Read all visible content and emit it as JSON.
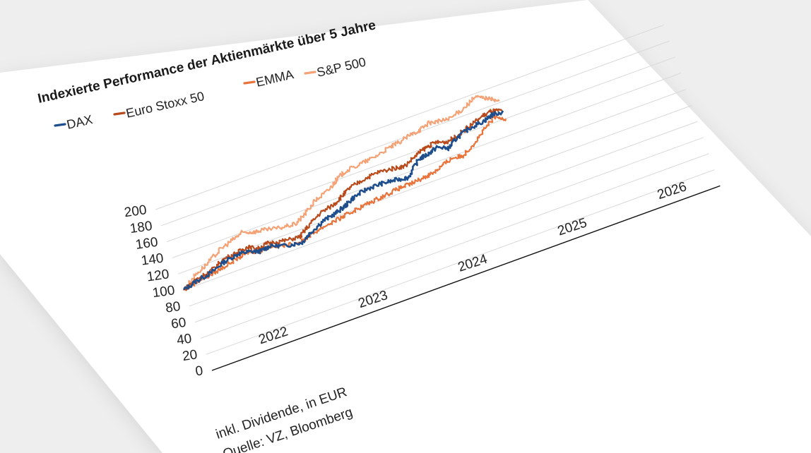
{
  "chart_data": {
    "type": "line",
    "title": "Indexierte Performance der Aktienmärkte über 5 Jahre",
    "footnote": "inkl. Dividende, in EUR",
    "source": "Quelle: VZ, Bloomberg",
    "xlabel": "",
    "ylabel": "",
    "ylim": [
      0,
      200
    ],
    "yticks": [
      "0",
      "20",
      "40",
      "60",
      "80",
      "100",
      "120",
      "140",
      "160",
      "180",
      "200"
    ],
    "xlim": [
      2021.3,
      2026.4
    ],
    "xticks": [
      {
        "label": "2022",
        "value": 2022
      },
      {
        "label": "2023",
        "value": 2023
      },
      {
        "label": "2024",
        "value": 2024
      },
      {
        "label": "2025",
        "value": 2025
      },
      {
        "label": "2026",
        "value": 2026
      }
    ],
    "grid": true,
    "legend_position": "top-left",
    "series": [
      {
        "name": "DAX",
        "color": "#1f4e8c",
        "x": [
          2021.3,
          2021.45,
          2021.6,
          2021.75,
          2021.9,
          2022.0,
          2022.1,
          2022.2,
          2022.35,
          2022.5,
          2022.6,
          2022.75,
          2022.9,
          2023.0,
          2023.1,
          2023.25,
          2023.4,
          2023.55,
          2023.65,
          2023.8,
          2023.9,
          2024.0,
          2024.1,
          2024.2,
          2024.35,
          2024.5,
          2024.6,
          2024.7
        ],
        "values": [
          100,
          105,
          108,
          115,
          118,
          116,
          112,
          114,
          108,
          105,
          112,
          120,
          124,
          128,
          134,
          138,
          138,
          136,
          134,
          150,
          152,
          156,
          150,
          158,
          164,
          166,
          170,
          168
        ]
      },
      {
        "name": "Euro Stoxx 50",
        "color": "#b84a1c",
        "x": [
          2021.3,
          2021.45,
          2021.6,
          2021.75,
          2021.9,
          2022.0,
          2022.1,
          2022.2,
          2022.35,
          2022.5,
          2022.6,
          2022.75,
          2022.9,
          2023.0,
          2023.1,
          2023.25,
          2023.4,
          2023.55,
          2023.65,
          2023.8,
          2023.9,
          2024.0,
          2024.1,
          2024.2,
          2024.35,
          2024.5,
          2024.6,
          2024.7
        ],
        "values": [
          100,
          107,
          110,
          118,
          120,
          122,
          116,
          118,
          114,
          112,
          120,
          130,
          134,
          140,
          146,
          150,
          152,
          150,
          148,
          156,
          160,
          162,
          158,
          160,
          166,
          172,
          174,
          170
        ]
      },
      {
        "name": "EMMA",
        "color": "#e8743c",
        "x": [
          2021.3,
          2021.45,
          2021.6,
          2021.75,
          2021.9,
          2022.0,
          2022.1,
          2022.2,
          2022.35,
          2022.5,
          2022.6,
          2022.75,
          2022.9,
          2023.0,
          2023.1,
          2023.25,
          2023.4,
          2023.55,
          2023.65,
          2023.8,
          2023.9,
          2024.0,
          2024.1,
          2024.2,
          2024.35,
          2024.5,
          2024.6,
          2024.7
        ],
        "values": [
          100,
          104,
          106,
          110,
          114,
          116,
          112,
          114,
          108,
          106,
          110,
          114,
          116,
          118,
          120,
          122,
          124,
          126,
          126,
          128,
          130,
          134,
          138,
          136,
          146,
          158,
          166,
          160
        ]
      },
      {
        "name": "S&P 500",
        "color": "#f4a276",
        "x": [
          2021.3,
          2021.45,
          2021.6,
          2021.75,
          2021.9,
          2022.0,
          2022.1,
          2022.2,
          2022.35,
          2022.5,
          2022.6,
          2022.75,
          2022.9,
          2023.0,
          2023.1,
          2023.25,
          2023.4,
          2023.55,
          2023.65,
          2023.8,
          2023.9,
          2024.0,
          2024.1,
          2024.2,
          2024.35,
          2024.5,
          2024.6,
          2024.7
        ],
        "values": [
          100,
          112,
          120,
          130,
          136,
          140,
          136,
          134,
          130,
          128,
          134,
          146,
          152,
          160,
          166,
          168,
          170,
          174,
          176,
          180,
          182,
          186,
          184,
          182,
          188,
          196,
          190,
          182
        ]
      }
    ]
  }
}
